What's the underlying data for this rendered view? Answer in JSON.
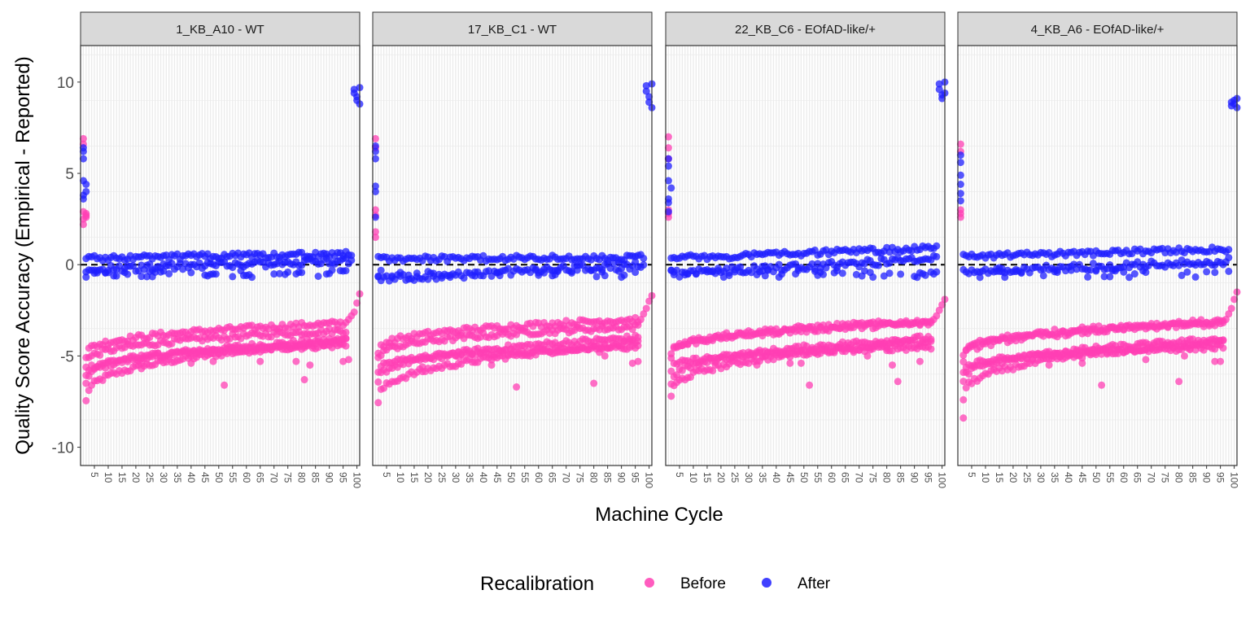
{
  "chart_data": {
    "type": "scatter",
    "xlabel": "Machine Cycle",
    "ylabel": "Quality Score Accuracy (Empirical - Reported)",
    "xlim": [
      0,
      101
    ],
    "ylim": [
      -11,
      12
    ],
    "x_ticks": [
      5,
      10,
      15,
      20,
      25,
      30,
      35,
      40,
      45,
      50,
      55,
      60,
      65,
      70,
      75,
      80,
      85,
      90,
      95,
      100
    ],
    "y_ticks": [
      -10,
      -5,
      0,
      5,
      10
    ],
    "y_tick_labels": [
      "-10",
      "-5",
      "0",
      "5",
      "10"
    ],
    "reference_line": {
      "y": 0,
      "style": "dashed"
    },
    "grid": true,
    "legend": {
      "title": "Recalibration",
      "position": "bottom",
      "entries": [
        {
          "label": "Before",
          "color": "#ff3fb4"
        },
        {
          "label": "After",
          "color": "#1f1fff"
        }
      ]
    },
    "panels": [
      {
        "title": "1_KB_A10 - WT",
        "before": {
          "start": [
            [
              1,
              6.9
            ],
            [
              1,
              6.6
            ],
            [
              1,
              2.9
            ],
            [
              1,
              2.5
            ],
            [
              1,
              2.2
            ],
            [
              2,
              2.8
            ],
            [
              2,
              2.7
            ],
            [
              2,
              2.6
            ]
          ],
          "bands": [
            [
              -7.5,
              -4.2
            ],
            [
              -6.5,
              -4.1
            ],
            [
              -6.0,
              -4.4
            ],
            [
              -5.5,
              -3.6
            ],
            [
              -5.0,
              -3.2
            ]
          ],
          "end": [
            [
              97,
              -3.0
            ],
            [
              98,
              -2.8
            ],
            [
              99,
              -2.6
            ],
            [
              100,
              -2.1
            ],
            [
              101,
              -1.6
            ]
          ],
          "outliers": [
            [
              22,
              -5.4
            ],
            [
              40,
              -5.4
            ],
            [
              48,
              -5.3
            ],
            [
              52,
              -6.6
            ],
            [
              65,
              -5.3
            ],
            [
              78,
              -5.3
            ],
            [
              81,
              -6.3
            ],
            [
              83,
              -5.5
            ],
            [
              95,
              -5.3
            ],
            [
              97,
              -5.2
            ]
          ]
        },
        "after": {
          "start": [
            [
              1,
              6.4
            ],
            [
              1,
              6.2
            ],
            [
              1,
              5.8
            ],
            [
              1,
              4.6
            ],
            [
              2,
              4.4
            ],
            [
              2,
              4.0
            ],
            [
              1,
              3.8
            ],
            [
              1,
              3.6
            ]
          ],
          "low": [
            -0.3,
            0.25
          ],
          "high": [
            0.35,
            0.6
          ],
          "end": [
            [
              99,
              9.6
            ],
            [
              99,
              9.4
            ],
            [
              100,
              9.2
            ],
            [
              100,
              9.0
            ],
            [
              101,
              8.8
            ],
            [
              101,
              9.7
            ]
          ]
        }
      },
      {
        "title": "17_KB_C1 - WT",
        "before": {
          "start": [
            [
              1,
              6.9
            ],
            [
              1,
              6.4
            ],
            [
              1,
              3.0
            ],
            [
              1,
              2.7
            ],
            [
              1,
              1.5
            ],
            [
              1,
              1.8
            ]
          ],
          "bands": [
            [
              -7.6,
              -4.3
            ],
            [
              -6.5,
              -4.0
            ],
            [
              -5.8,
              -4.5
            ],
            [
              -5.2,
              -3.4
            ],
            [
              -4.8,
              -3.0
            ]
          ],
          "end": [
            [
              97,
              -3.0
            ],
            [
              98,
              -2.7
            ],
            [
              99,
              -2.4
            ],
            [
              100,
              -2.0
            ],
            [
              101,
              -1.7
            ]
          ],
          "outliers": [
            [
              18,
              -5.6
            ],
            [
              31,
              -4.8
            ],
            [
              43,
              -5.5
            ],
            [
              52,
              -6.7
            ],
            [
              80,
              -6.5
            ],
            [
              82,
              -4.8
            ],
            [
              84,
              -5.0
            ],
            [
              94,
              -5.4
            ],
            [
              96,
              -5.3
            ]
          ]
        },
        "after": {
          "start": [
            [
              1,
              6.5
            ],
            [
              1,
              6.2
            ],
            [
              1,
              5.8
            ],
            [
              1,
              4.3
            ],
            [
              1,
              4.0
            ],
            [
              1,
              2.6
            ]
          ],
          "low": [
            -0.8,
            0.0
          ],
          "high": [
            0.3,
            0.4
          ],
          "end": [
            [
              99,
              9.8
            ],
            [
              99,
              9.5
            ],
            [
              100,
              9.2
            ],
            [
              100,
              8.9
            ],
            [
              101,
              8.6
            ],
            [
              101,
              9.9
            ]
          ]
        }
      },
      {
        "title": "22_KB_C6 - EOfAD-like/+",
        "before": {
          "start": [
            [
              1,
              7.0
            ],
            [
              1,
              6.4
            ],
            [
              1,
              5.8
            ],
            [
              1,
              3.0
            ],
            [
              1,
              2.8
            ],
            [
              1,
              2.6
            ]
          ],
          "bands": [
            [
              -7.3,
              -4.2
            ],
            [
              -6.6,
              -4.0
            ],
            [
              -5.8,
              -4.5
            ],
            [
              -5.0,
              -3.2
            ],
            [
              -4.9,
              -3.1
            ]
          ],
          "end": [
            [
              97,
              -3.0
            ],
            [
              98,
              -2.8
            ],
            [
              99,
              -2.5
            ],
            [
              100,
              -2.2
            ],
            [
              101,
              -1.9
            ]
          ],
          "outliers": [
            [
              33,
              -5.5
            ],
            [
              45,
              -5.4
            ],
            [
              49,
              -5.4
            ],
            [
              52,
              -6.6
            ],
            [
              73,
              -5.0
            ],
            [
              80,
              -4.7
            ],
            [
              82,
              -5.5
            ],
            [
              84,
              -6.4
            ],
            [
              92,
              -5.3
            ]
          ]
        },
        "after": {
          "start": [
            [
              1,
              5.8
            ],
            [
              1,
              5.4
            ],
            [
              1,
              4.6
            ],
            [
              2,
              4.2
            ],
            [
              1,
              3.6
            ],
            [
              1,
              3.4
            ],
            [
              1,
              2.9
            ]
          ],
          "low": [
            -0.5,
            0.3
          ],
          "high": [
            0.35,
            0.9
          ],
          "end": [
            [
              99,
              9.9
            ],
            [
              99,
              9.6
            ],
            [
              100,
              9.3
            ],
            [
              100,
              9.1
            ],
            [
              101,
              9.4
            ],
            [
              101,
              10.0
            ]
          ]
        }
      },
      {
        "title": "4_KB_A6 - EOfAD-like/+",
        "before": {
          "start": [
            [
              1,
              6.6
            ],
            [
              1,
              6.2
            ],
            [
              1,
              3.0
            ],
            [
              1,
              2.8
            ],
            [
              1,
              2.6
            ]
          ],
          "bands": [
            [
              -7.4,
              -4.2
            ],
            [
              -6.5,
              -4.1
            ],
            [
              -5.9,
              -4.5
            ],
            [
              -5.2,
              -3.2
            ],
            [
              -5.0,
              -3.1
            ]
          ],
          "end": [
            [
              97,
              -3.0
            ],
            [
              98,
              -2.7
            ],
            [
              99,
              -2.4
            ],
            [
              100,
              -1.9
            ],
            [
              101,
              -1.5
            ]
          ],
          "outliers": [
            [
              2,
              -8.4
            ],
            [
              33,
              -5.5
            ],
            [
              45,
              -5.4
            ],
            [
              52,
              -6.6
            ],
            [
              68,
              -5.2
            ],
            [
              80,
              -6.4
            ],
            [
              82,
              -5.0
            ],
            [
              84,
              -4.6
            ],
            [
              93,
              -5.3
            ],
            [
              95,
              -5.3
            ]
          ]
        },
        "after": {
          "start": [
            [
              1,
              6.0
            ],
            [
              1,
              5.6
            ],
            [
              1,
              4.9
            ],
            [
              1,
              4.4
            ],
            [
              1,
              3.9
            ],
            [
              1,
              3.5
            ]
          ],
          "low": [
            -0.4,
            0.2
          ],
          "high": [
            0.45,
            0.85
          ],
          "end": [
            [
              99,
              8.7
            ],
            [
              99,
              8.9
            ],
            [
              100,
              9.0
            ],
            [
              100,
              8.8
            ],
            [
              101,
              9.1
            ],
            [
              101,
              8.6
            ]
          ]
        }
      }
    ]
  }
}
